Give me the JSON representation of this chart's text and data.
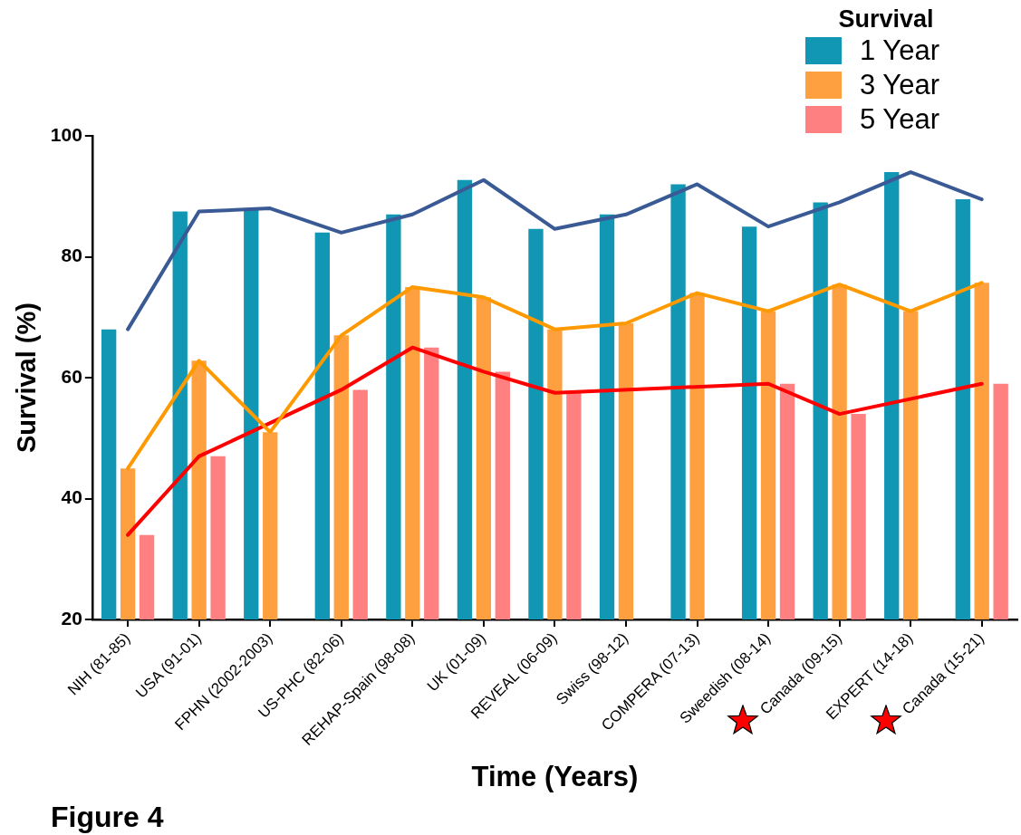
{
  "chart_data": {
    "type": "bar",
    "xlabel": "Time (Years)",
    "ylabel": "Survival (%)",
    "legend_title": "Survival",
    "legend": "top right",
    "grid": false,
    "categories": [
      "NIH (81-85)",
      "USA (91-01)",
      "FPHN (2002-2003)",
      "US-PHC (82-06)",
      "REHAP-Spain (98-08)",
      "UK (01-09)",
      "REVEAL (06-09)",
      "Swiss (98-12)",
      "COMPERA (07-13)",
      "Sweedish (08-14)",
      "Canada (09-15)",
      "EXPERT (14-18)",
      "Canada (15-21)"
    ],
    "ylim": [
      20,
      100
    ],
    "yticks": [
      20,
      40,
      60,
      80,
      100
    ],
    "series": [
      {
        "name": "1 Year",
        "color": "#1196b4",
        "values": [
          68,
          87.5,
          88,
          84,
          87,
          92.7,
          84.6,
          87,
          92,
          85,
          89,
          94,
          89.5
        ]
      },
      {
        "name": "3 Year",
        "color": "#ffa040",
        "values": [
          45,
          62.8,
          51,
          67,
          75,
          73.3,
          68,
          69,
          74,
          71,
          75.4,
          71,
          75.7
        ]
      },
      {
        "name": "5 Year",
        "color": "#ff8080",
        "values": [
          34,
          47,
          null,
          58,
          65,
          61,
          57.5,
          null,
          null,
          59,
          54,
          null,
          59
        ]
      },
      {
        "type": "line",
        "color": "#3a5a95",
        "values": [
          68,
          87.5,
          88,
          84,
          87,
          92.7,
          84.6,
          87,
          92,
          85,
          89,
          94,
          89.5
        ]
      },
      {
        "type": "line",
        "color": "#ff9900",
        "values": [
          45,
          62.8,
          51,
          67,
          75,
          73.3,
          68,
          69,
          74,
          71,
          75.4,
          71,
          75.7
        ]
      },
      {
        "type": "line",
        "color": "#ff0000",
        "values": [
          34,
          47,
          null,
          58,
          65,
          61,
          57.5,
          null,
          null,
          59,
          54,
          null,
          59
        ]
      }
    ],
    "annotations": [
      "Figure 4"
    ]
  }
}
